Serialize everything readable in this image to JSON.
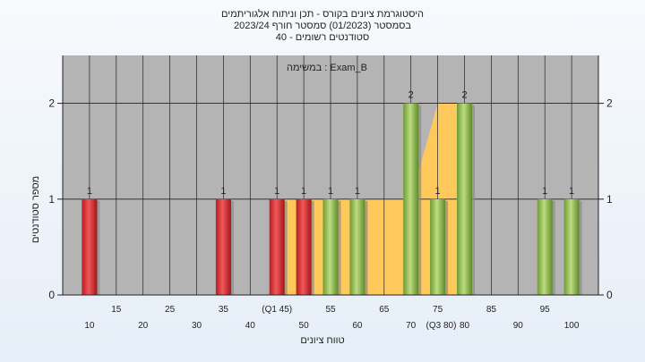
{
  "chart_data": {
    "type": "bar",
    "title_lines": [
      "היסטוגרמת ציונים בקורס - תכן וניתוח אלגוריתמים",
      "בסמסטר (01/2023) סמסטר חורף 2023/24",
      "סטודנטים רשומים - 40"
    ],
    "annotation": "במשימה : Exam_B",
    "xlabel": "טווח ציונים",
    "ylabel": "מספר סטודנטים",
    "ylim": [
      0,
      2.5
    ],
    "y_ticks": [
      0,
      1,
      2
    ],
    "xlim": [
      5,
      105
    ],
    "x_ticks_lower": [
      "10",
      "20",
      "30",
      "40",
      "50",
      "60",
      "70",
      "80",
      "90",
      "100"
    ],
    "x_ticks_upper": [
      "15",
      "25",
      "35",
      "(Q1 45)",
      "55",
      "65",
      "75",
      "85",
      "95"
    ],
    "x_ticks_lower_pos": [
      10,
      20,
      30,
      40,
      50,
      60,
      70,
      80,
      90,
      100
    ],
    "x_ticks_upper_pos": [
      15,
      25,
      35,
      45,
      55,
      65,
      75,
      85,
      95
    ],
    "q3_label": "(Q3 80)",
    "q3_pos": 80,
    "bars": [
      {
        "x": 10,
        "value": 1,
        "label": "1",
        "color": "red"
      },
      {
        "x": 35,
        "value": 1,
        "label": "1",
        "color": "red"
      },
      {
        "x": 45,
        "value": 1,
        "label": "1",
        "color": "red"
      },
      {
        "x": 50,
        "value": 1,
        "label": "1",
        "color": "red"
      },
      {
        "x": 55,
        "value": 1,
        "label": "1",
        "color": "green"
      },
      {
        "x": 60,
        "value": 1,
        "label": "1",
        "color": "green"
      },
      {
        "x": 70,
        "value": 2,
        "label": "2",
        "color": "green"
      },
      {
        "x": 75,
        "value": 1,
        "label": "1",
        "color": "green"
      },
      {
        "x": 80,
        "value": 2,
        "label": "2",
        "color": "green"
      },
      {
        "x": 95,
        "value": 1,
        "label": "1",
        "color": "green"
      },
      {
        "x": 100,
        "value": 1,
        "label": "1",
        "color": "green"
      }
    ],
    "area_series": [
      {
        "x": 45,
        "y": 1
      },
      {
        "x": 65,
        "y": 1
      },
      {
        "x": 70,
        "y": 1
      },
      {
        "x": 75,
        "y": 2
      },
      {
        "x": 80,
        "y": 2
      }
    ],
    "grid": true,
    "colors": {
      "plot_bg": "#b4b4b4",
      "red": "#e8393c",
      "green": "#9ac25a",
      "area": "#ffc85a",
      "grid": "#222222"
    }
  }
}
